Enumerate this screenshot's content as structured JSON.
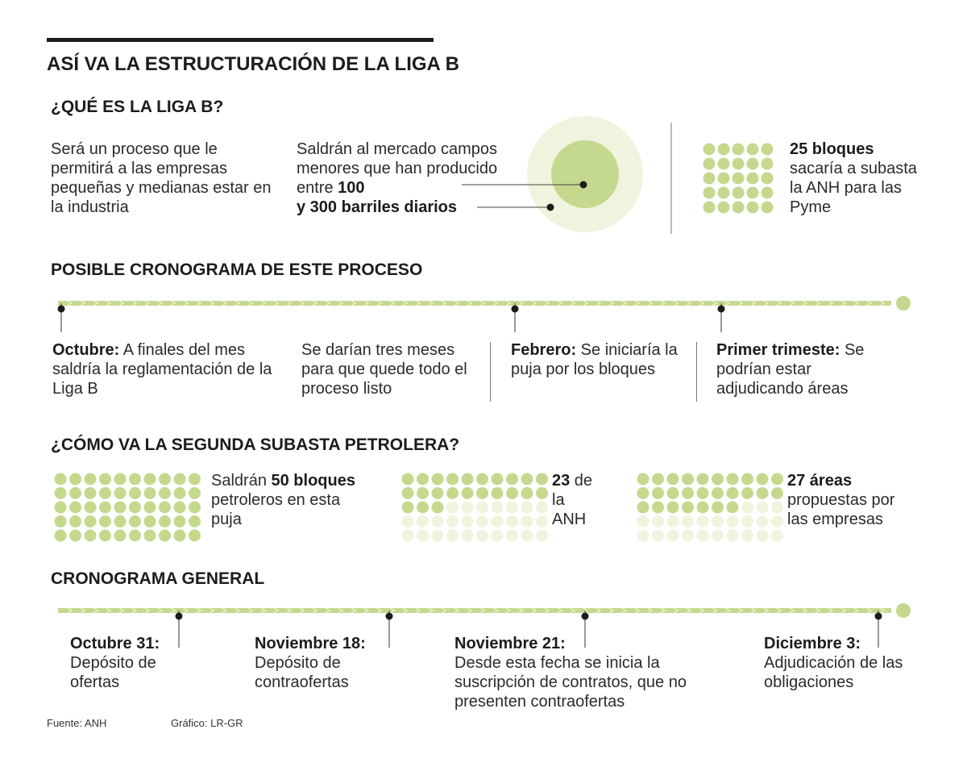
{
  "title": "ASÍ VA LA ESTRUCTURACIÓN DE LA LIGA B",
  "colors": {
    "green": "#c5d98e",
    "light_green": "#e8efcb",
    "pale_green": "#f0f4de",
    "dark": "#1c1c1c"
  },
  "que_es": {
    "heading": "¿QUÉ ES LA LIGA B?",
    "desc": "Será un proceso que le permitirá a las empresas pequeñas y medianas estar en la industria",
    "market_text": "Saldrán al mercado campos menores que han producido entre ",
    "market_bold_1": "100",
    "market_bold_2": "y 300 barriles diarios",
    "blocks_count_label": "25 bloques",
    "blocks_text": "sacaría a subasta la ANH para las Pyme",
    "blocks_total": 25
  },
  "posible": {
    "heading": "POSIBLE CRONOGRAMA DE ESTE PROCESO",
    "items": [
      {
        "bold": "Octubre:",
        "text": " A finales del mes saldría la reglamentación de la Liga B"
      },
      {
        "bold": "",
        "text": "Se darían tres meses para que quede todo el proceso listo"
      },
      {
        "bold": "Febrero:",
        "text": " Se iniciaría la puja por los bloques"
      },
      {
        "bold": "Primer trimeste:",
        "text": " Se podrían estar adjudicando áreas"
      }
    ]
  },
  "segunda": {
    "heading": "¿CÓMO VA LA SEGUNDA SUBASTA PETROLERA?",
    "groups": [
      {
        "total": 50,
        "highlighted": 50,
        "pre": "Saldrán ",
        "bold": "50 bloques",
        "post": " petroleros en esta puja"
      },
      {
        "total": 50,
        "highlighted": 23,
        "pre": "",
        "bold": "23",
        "post": " de la ANH"
      },
      {
        "total": 50,
        "highlighted": 27,
        "pre": "",
        "bold": "27 áreas",
        "post": " propuestas por las empresas"
      }
    ]
  },
  "general": {
    "heading": "CRONOGRAMA GENERAL",
    "items": [
      {
        "bold": "Octubre 31:",
        "text": "Depósito de ofertas"
      },
      {
        "bold": "Noviembre 18:",
        "text": "Depósito de contraofertas"
      },
      {
        "bold": "Noviembre 21:",
        "text": "Desde esta fecha se inicia la suscripción de contratos, que no presenten contraofertas"
      },
      {
        "bold": "Diciembre 3:",
        "text": "Adjudicación de las obligaciones"
      }
    ]
  },
  "footer": {
    "source": "Fuente: ANH",
    "graphic": "Gráfico: LR-GR"
  }
}
